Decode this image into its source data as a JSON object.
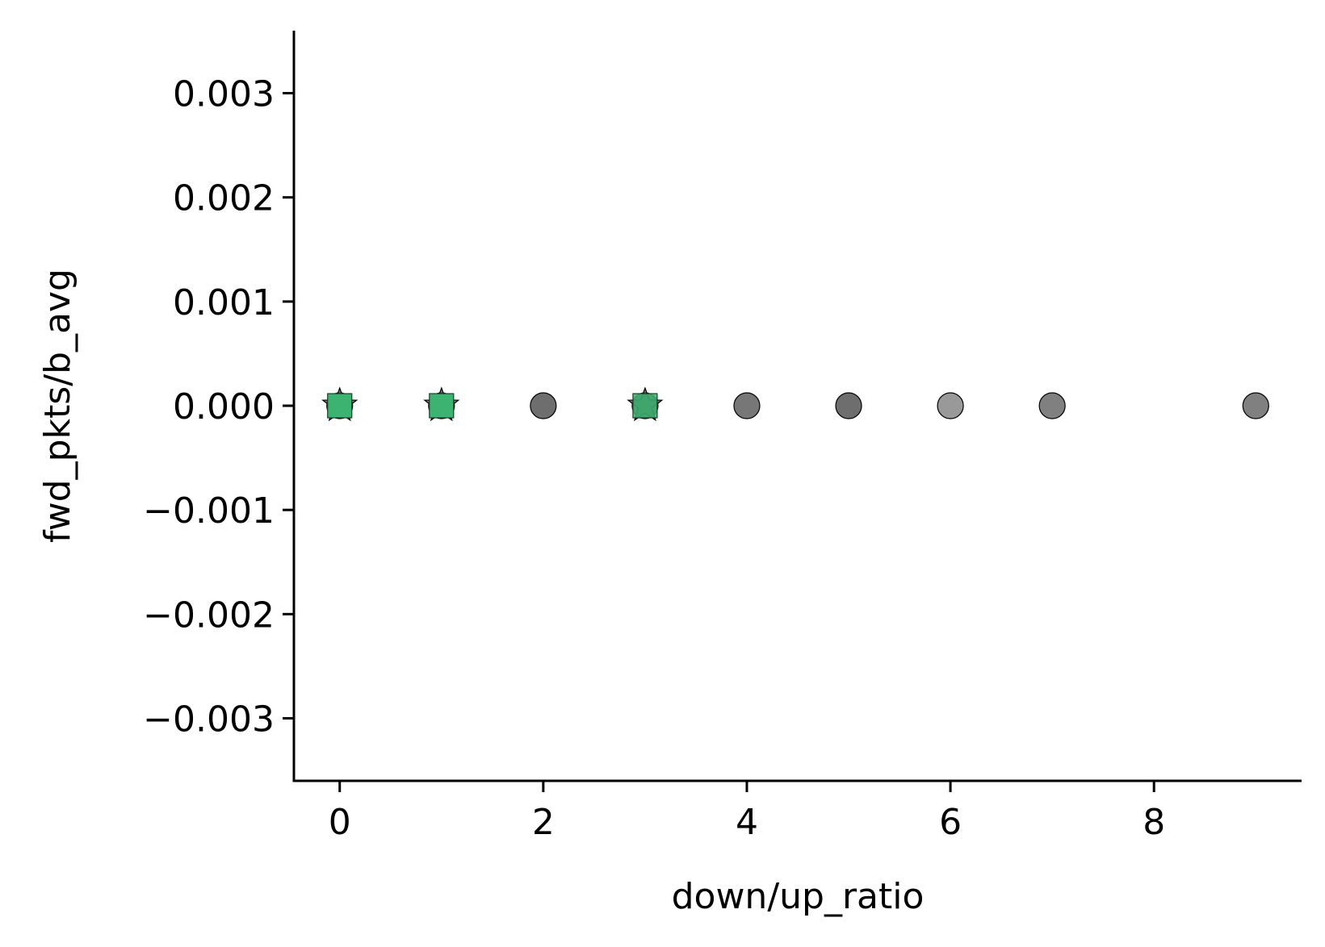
{
  "chart_data": {
    "type": "scatter",
    "title": "",
    "xlabel": "down/up_ratio",
    "ylabel": "fwd_pkts/b_avg",
    "xlim": [
      -0.45,
      9.45
    ],
    "ylim": [
      -0.0036,
      0.0036
    ],
    "x_ticks": [
      0,
      2,
      4,
      6,
      8
    ],
    "y_ticks": [
      -0.003,
      -0.002,
      -0.001,
      0.0,
      0.001,
      0.002,
      0.003
    ],
    "x_tick_labels": [
      "0",
      "2",
      "4",
      "6",
      "8"
    ],
    "y_tick_labels": [
      "−0.003",
      "−0.002",
      "−0.001",
      "0.000",
      "0.001",
      "0.002",
      "0.003"
    ],
    "grid": false,
    "spines": "left-bottom",
    "series": [
      {
        "marker": "circle",
        "color": "#555555",
        "points": [
          {
            "x": 0,
            "y": 0.0,
            "opacity": 0.85
          },
          {
            "x": 1,
            "y": 0.0,
            "opacity": 0.85
          },
          {
            "x": 2,
            "y": 0.0,
            "opacity": 0.85
          },
          {
            "x": 3,
            "y": 0.0,
            "opacity": 0.85
          },
          {
            "x": 4,
            "y": 0.0,
            "opacity": 0.8
          },
          {
            "x": 5,
            "y": 0.0,
            "opacity": 0.85
          },
          {
            "x": 6,
            "y": 0.0,
            "opacity": 0.6
          },
          {
            "x": 7,
            "y": 0.0,
            "opacity": 0.75
          },
          {
            "x": 9,
            "y": 0.0,
            "opacity": 0.75
          }
        ]
      },
      {
        "marker": "star",
        "color": "#555555",
        "points": [
          {
            "x": 0,
            "y": 0.0,
            "opacity": 0.8
          },
          {
            "x": 1,
            "y": 0.0,
            "opacity": 0.8
          },
          {
            "x": 3,
            "y": 0.0,
            "opacity": 0.8
          }
        ]
      },
      {
        "marker": "square",
        "color": "#3cb371",
        "points": [
          {
            "x": 0,
            "y": 0.0,
            "opacity": 1.0
          },
          {
            "x": 1,
            "y": 0.0,
            "opacity": 1.0
          },
          {
            "x": 3,
            "y": 0.0,
            "opacity": 0.85
          }
        ]
      }
    ]
  }
}
